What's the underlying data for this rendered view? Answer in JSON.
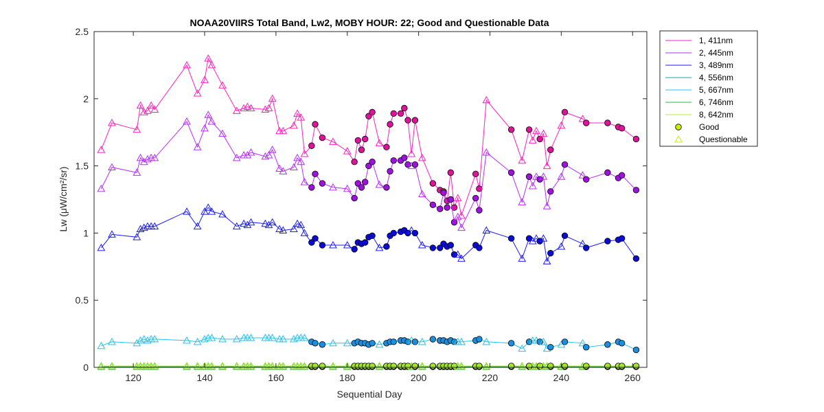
{
  "chart_data": {
    "type": "line",
    "title": "NOAA20VIIRS Total Band,  Lw2, MOBY HOUR: 22;  Good and Questionable Data",
    "xlabel": "Sequential Day",
    "ylabel": "Lw (μW/cm²/sr)",
    "xlim": [
      109,
      264
    ],
    "ylim": [
      0,
      2.5
    ],
    "xticks": [
      120,
      140,
      160,
      180,
      200,
      220,
      240,
      260
    ],
    "yticks": [
      0,
      0.5,
      1,
      1.5,
      2,
      2.5
    ],
    "ytick_labels": [
      "0",
      "0.5",
      "1",
      "1.5",
      "2",
      "2.5"
    ],
    "grid": false,
    "legend_position": "outside-top-right",
    "legend_marker_labels": {
      "good": "Good",
      "questionable": "Questionable"
    },
    "good_marker_color": "#c8f000",
    "questionable_marker_color": "#c8f000",
    "x": [
      111,
      114,
      121,
      122,
      123,
      124,
      125,
      126,
      135,
      138,
      140,
      141,
      142,
      145,
      149,
      151,
      152,
      153,
      157,
      158,
      159,
      161,
      162,
      165,
      166,
      167,
      168,
      170,
      171,
      173,
      176,
      180,
      182,
      183,
      184,
      185,
      186,
      187,
      189,
      191,
      192,
      193,
      195,
      196,
      197,
      198,
      199,
      201,
      204,
      206,
      207,
      208,
      209,
      210,
      211,
      212,
      216,
      217,
      219,
      226,
      229,
      231,
      232,
      233,
      234,
      235,
      236,
      237,
      240,
      241,
      246,
      247,
      253,
      256,
      257,
      261
    ],
    "quality": [
      "Q",
      "Q",
      "Q",
      "Q",
      "Q",
      "Q",
      "Q",
      "Q",
      "Q",
      "Q",
      "Q",
      "Q",
      "Q",
      "Q",
      "Q",
      "Q",
      "Q",
      "Q",
      "Q",
      "Q",
      "Q",
      "Q",
      "Q",
      "Q",
      "Q",
      "Q",
      "Q",
      "G",
      "G",
      "G",
      "Q",
      "Q",
      "G",
      "G",
      "G",
      "G",
      "G",
      "G",
      "Q",
      "G",
      "G",
      "G",
      "G",
      "G",
      "G",
      "Q",
      "G",
      "Q",
      "G",
      "G",
      "G",
      "G",
      "G",
      "G",
      "Q",
      "Q",
      "G",
      "G",
      "Q",
      "G",
      "Q",
      "G",
      "Q",
      "Q",
      "G",
      "Q",
      "Q",
      "G",
      "Q",
      "G",
      "Q",
      "G",
      "G",
      "G",
      "G",
      "G"
    ],
    "series": [
      {
        "name": "1, 411nm",
        "color": "#ff1fbf",
        "marker_color": "#e0119b",
        "values": [
          1.62,
          1.82,
          1.77,
          1.95,
          1.9,
          1.91,
          1.95,
          1.92,
          2.25,
          2.04,
          2.14,
          2.3,
          2.25,
          2.1,
          1.91,
          1.93,
          1.94,
          1.93,
          1.92,
          1.93,
          2.0,
          1.76,
          1.76,
          1.8,
          1.89,
          1.86,
          1.59,
          1.65,
          1.81,
          1.71,
          1.68,
          1.61,
          1.53,
          1.69,
          1.62,
          1.7,
          1.87,
          1.9,
          1.67,
          1.64,
          1.81,
          1.89,
          1.89,
          1.93,
          1.84,
          1.59,
          1.84,
          1.56,
          1.37,
          1.32,
          1.31,
          1.24,
          1.45,
          1.19,
          1.26,
          1.13,
          1.44,
          1.33,
          1.99,
          1.77,
          1.54,
          1.77,
          1.69,
          1.76,
          1.7,
          1.74,
          1.5,
          1.62,
          1.8,
          1.9,
          1.85,
          1.82,
          1.82,
          1.79,
          1.78,
          1.7
        ]
      },
      {
        "name": "2, 445nm",
        "color": "#b82bff",
        "marker_color": "#a010e0",
        "values": [
          1.33,
          1.49,
          1.45,
          1.56,
          1.53,
          1.55,
          1.56,
          1.56,
          1.83,
          1.64,
          1.78,
          1.88,
          1.83,
          1.74,
          1.56,
          1.58,
          1.58,
          1.6,
          1.57,
          1.58,
          1.62,
          1.48,
          1.46,
          1.49,
          1.56,
          1.53,
          1.38,
          1.34,
          1.44,
          1.37,
          1.34,
          1.33,
          1.26,
          1.37,
          1.34,
          1.38,
          1.5,
          1.53,
          1.36,
          1.34,
          1.46,
          1.54,
          1.54,
          1.56,
          1.51,
          1.5,
          1.51,
          1.29,
          1.21,
          1.18,
          1.3,
          1.19,
          1.25,
          1.08,
          1.12,
          1.04,
          1.26,
          1.17,
          1.6,
          1.45,
          1.23,
          1.42,
          1.35,
          1.42,
          1.4,
          1.42,
          1.2,
          1.31,
          1.42,
          1.51,
          1.43,
          1.4,
          1.45,
          1.41,
          1.43,
          1.32
        ]
      },
      {
        "name": "3, 489nm",
        "color": "#1a1aff",
        "marker_color": "#0b0bd8",
        "values": [
          0.89,
          0.99,
          0.97,
          1.03,
          1.04,
          1.05,
          1.05,
          1.05,
          1.16,
          1.05,
          1.16,
          1.19,
          1.16,
          1.14,
          1.05,
          1.07,
          1.06,
          1.08,
          1.07,
          1.06,
          1.08,
          1.03,
          1.02,
          1.03,
          1.07,
          1.06,
          1.0,
          0.93,
          0.96,
          0.91,
          0.91,
          0.91,
          0.88,
          0.93,
          0.92,
          0.93,
          0.97,
          0.98,
          0.89,
          0.9,
          0.98,
          1.0,
          1.01,
          1.02,
          1.0,
          1.02,
          1.0,
          0.91,
          0.89,
          0.89,
          0.92,
          0.9,
          0.91,
          0.84,
          0.84,
          0.81,
          0.91,
          0.89,
          1.02,
          0.96,
          0.81,
          0.96,
          0.94,
          0.96,
          0.94,
          0.96,
          0.79,
          0.85,
          0.9,
          0.98,
          0.92,
          0.89,
          0.94,
          0.95,
          0.96,
          0.81
        ]
      },
      {
        "name": "4, 556nm",
        "color": "#1aa39e",
        "marker_color": "#16998f",
        "values": [
          0.01,
          0.01,
          0.01,
          0.01,
          0.01,
          0.01,
          0.01,
          0.01,
          0.01,
          0.01,
          0.01,
          0.01,
          0.01,
          0.01,
          0.01,
          0.01,
          0.01,
          0.01,
          0.01,
          0.01,
          0.01,
          0.01,
          0.01,
          0.01,
          0.01,
          0.01,
          0.01,
          0.01,
          0.01,
          0.01,
          0.01,
          0.01,
          0.01,
          0.01,
          0.01,
          0.01,
          0.01,
          0.01,
          0.01,
          0.01,
          0.01,
          0.01,
          0.01,
          0.01,
          0.01,
          0.01,
          0.01,
          0.01,
          0.01,
          0.01,
          0.01,
          0.01,
          0.01,
          0.01,
          0.01,
          0.01,
          0.01,
          0.01,
          0.01,
          0.01,
          0.01,
          0.01,
          0.01,
          0.01,
          0.01,
          0.01,
          0.01,
          0.01,
          0.01,
          0.01,
          0.01,
          0.01,
          0.01,
          0.01,
          0.01,
          0.01
        ]
      },
      {
        "name": "5, 667nm",
        "color": "#20c4ef",
        "marker_color": "#1a8fe0",
        "values": [
          0.16,
          0.19,
          0.18,
          0.2,
          0.21,
          0.2,
          0.21,
          0.21,
          0.2,
          0.19,
          0.21,
          0.22,
          0.22,
          0.21,
          0.21,
          0.22,
          0.22,
          0.22,
          0.22,
          0.22,
          0.22,
          0.21,
          0.21,
          0.21,
          0.22,
          0.22,
          0.22,
          0.19,
          0.18,
          0.17,
          0.18,
          0.18,
          0.18,
          0.19,
          0.18,
          0.18,
          0.17,
          0.18,
          0.17,
          0.18,
          0.19,
          0.19,
          0.2,
          0.2,
          0.19,
          0.2,
          0.19,
          0.19,
          0.21,
          0.2,
          0.2,
          0.19,
          0.2,
          0.19,
          0.19,
          0.19,
          0.2,
          0.21,
          0.19,
          0.18,
          0.14,
          0.19,
          0.2,
          0.2,
          0.19,
          0.19,
          0.14,
          0.15,
          0.17,
          0.19,
          0.18,
          0.15,
          0.17,
          0.19,
          0.18,
          0.13
        ]
      },
      {
        "name": "6, 746nm",
        "color": "#2ab83a",
        "marker_color": "#22a630",
        "values": [
          0.005,
          0.005,
          0.005,
          0.005,
          0.005,
          0.005,
          0.005,
          0.005,
          0.005,
          0.005,
          0.005,
          0.005,
          0.005,
          0.005,
          0.005,
          0.005,
          0.005,
          0.005,
          0.005,
          0.005,
          0.005,
          0.005,
          0.005,
          0.005,
          0.005,
          0.005,
          0.005,
          0.005,
          0.005,
          0.005,
          0.005,
          0.005,
          0.005,
          0.005,
          0.005,
          0.005,
          0.005,
          0.005,
          0.005,
          0.005,
          0.005,
          0.005,
          0.005,
          0.005,
          0.005,
          0.005,
          0.005,
          0.005,
          0.005,
          0.005,
          0.005,
          0.005,
          0.005,
          0.005,
          0.005,
          0.005,
          0.005,
          0.005,
          0.005,
          0.005,
          0.005,
          0.005,
          0.005,
          0.005,
          0.005,
          0.005,
          0.005,
          0.005,
          0.005,
          0.005,
          0.005,
          0.005,
          0.005,
          0.005,
          0.005,
          0.005
        ]
      },
      {
        "name": "8, 642nm",
        "color": "#b5ef36",
        "marker_color": "#a4e62a",
        "values": [
          0.01,
          0.01,
          0.01,
          0.01,
          0.01,
          0.01,
          0.01,
          0.01,
          0.01,
          0.01,
          0.01,
          0.01,
          0.01,
          0.01,
          0.01,
          0.01,
          0.01,
          0.01,
          0.01,
          0.01,
          0.01,
          0.01,
          0.01,
          0.01,
          0.01,
          0.01,
          0.01,
          0.01,
          0.01,
          0.01,
          0.01,
          0.01,
          0.01,
          0.01,
          0.01,
          0.01,
          0.01,
          0.01,
          0.01,
          0.01,
          0.01,
          0.01,
          0.01,
          0.01,
          0.01,
          0.01,
          0.01,
          0.01,
          0.01,
          0.01,
          0.01,
          0.01,
          0.01,
          0.01,
          0.01,
          0.01,
          0.01,
          0.01,
          0.01,
          0.01,
          0.01,
          0.01,
          0.01,
          0.01,
          0.01,
          0.01,
          0.01,
          0.01,
          0.01,
          0.01,
          0.01,
          0.01,
          0.01,
          0.01,
          0.01,
          0.01
        ]
      }
    ]
  }
}
